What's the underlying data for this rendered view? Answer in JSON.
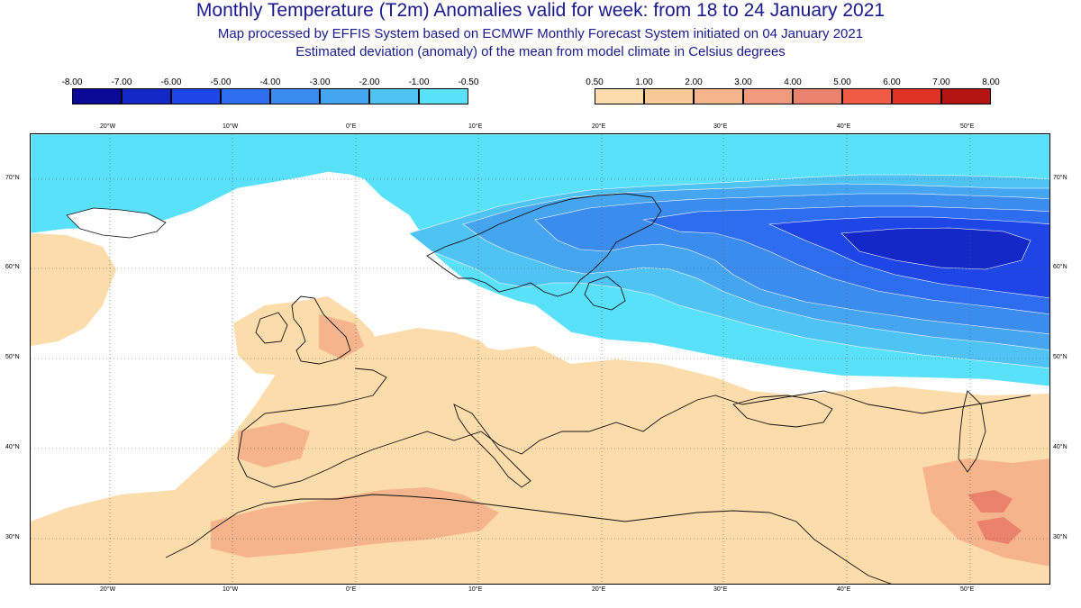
{
  "header": {
    "title": "Monthly Temperature (T2m) Anomalies valid for week: from 18 to 24 January 2021",
    "subtitle1": "Map processed by EFFIS System based on ECMWF Monthly Forecast System initiated on 04 January 2021",
    "subtitle2": "Estimated deviation (anomaly) of the mean from model climate in Celsius degrees"
  },
  "legend": {
    "cold_labels": [
      "-8.00",
      "-7.00",
      "-6.00",
      "-5.00",
      "-4.00",
      "-3.00",
      "-2.00",
      "-1.00",
      "-0.50"
    ],
    "cold_colors": [
      "#0a0a96",
      "#1428c8",
      "#1e46e6",
      "#2d6ef0",
      "#3c8cf0",
      "#46a5f0",
      "#50c3f5",
      "#5ae1fa"
    ],
    "warm_labels": [
      "0.50",
      "1.00",
      "2.00",
      "3.00",
      "4.00",
      "5.00",
      "6.00",
      "7.00",
      "8.00"
    ],
    "warm_colors": [
      "#fcdcaa",
      "#f8c896",
      "#f5b48c",
      "#f09b7d",
      "#eb826e",
      "#f05a46",
      "#e13228",
      "#b41414"
    ]
  },
  "map": {
    "lon_labels": [
      "20°W",
      "10°W",
      "0°E",
      "10°E",
      "20°E",
      "30°E",
      "40°E",
      "50°E"
    ],
    "lat_labels": [
      "70°N",
      "60°N",
      "50°N",
      "40°N",
      "30°N"
    ],
    "colors": {
      "sea": "#ffffff",
      "coast": "#111111",
      "grid": "#555555"
    }
  }
}
